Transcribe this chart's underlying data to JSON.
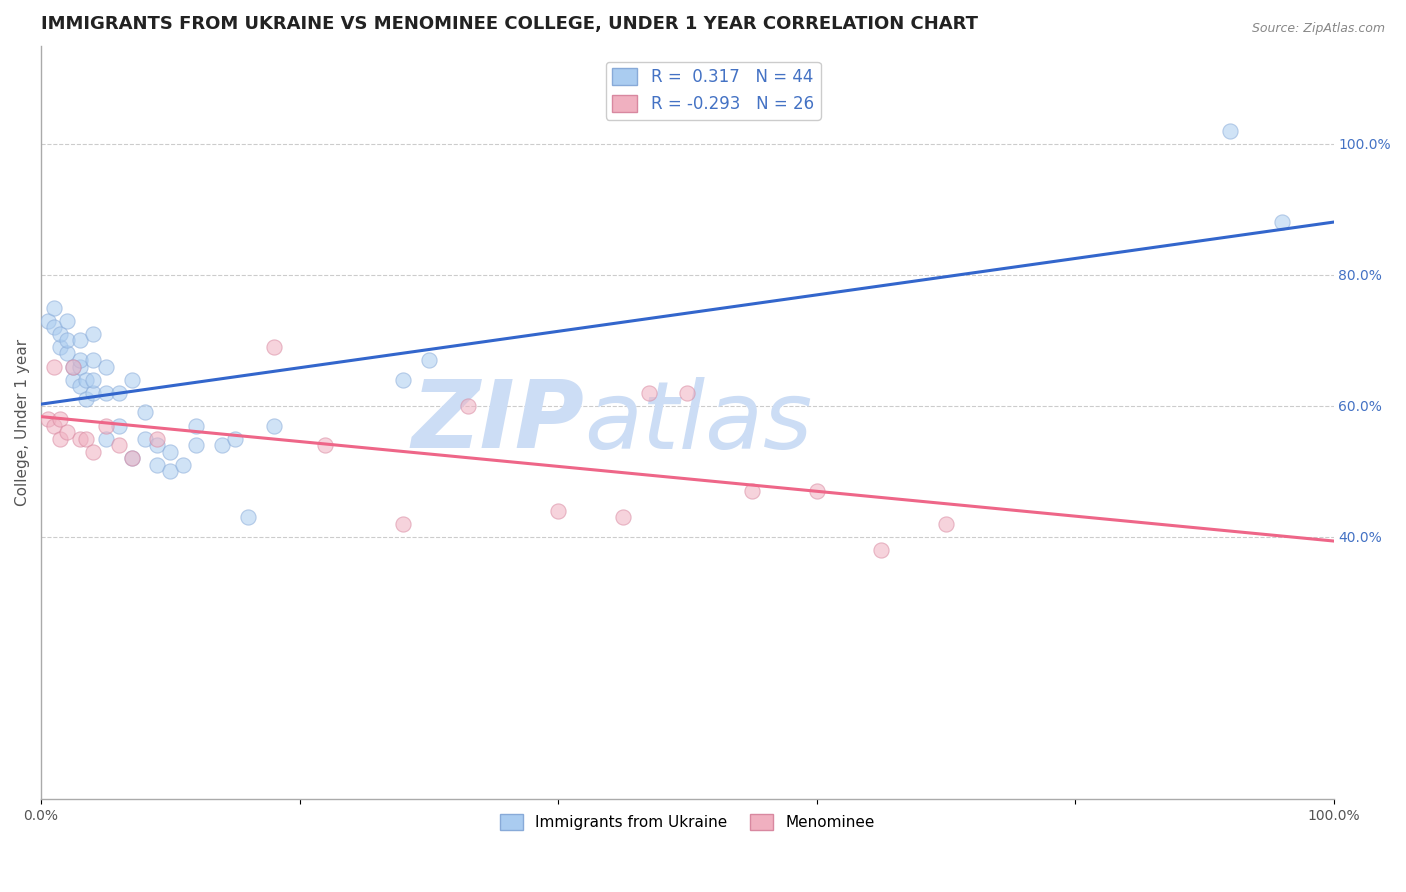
{
  "title": "IMMIGRANTS FROM UKRAINE VS MENOMINEE COLLEGE, UNDER 1 YEAR CORRELATION CHART",
  "source_text": "Source: ZipAtlas.com",
  "ylabel": "College, Under 1 year",
  "xlim": [
    0.0,
    1.0
  ],
  "ylim": [
    0.0,
    1.15
  ],
  "xtick_positions": [
    0.0,
    0.2,
    0.4,
    0.6,
    0.8,
    1.0
  ],
  "xtick_labels": [
    "0.0%",
    "",
    "",
    "",
    "",
    "100.0%"
  ],
  "right_ytick_positions": [
    0.4,
    0.6,
    0.8,
    1.0
  ],
  "right_ytick_labels": [
    "40.0%",
    "60.0%",
    "80.0%",
    "100.0%"
  ],
  "background_color": "#ffffff",
  "grid_color": "#cccccc",
  "watermark_zip": "ZIP",
  "watermark_atlas": "atlas",
  "watermark_color": "#ccddf5",
  "ukraine_x": [
    0.005,
    0.01,
    0.01,
    0.015,
    0.015,
    0.02,
    0.02,
    0.02,
    0.025,
    0.025,
    0.03,
    0.03,
    0.03,
    0.03,
    0.035,
    0.035,
    0.04,
    0.04,
    0.04,
    0.04,
    0.05,
    0.05,
    0.05,
    0.06,
    0.06,
    0.07,
    0.07,
    0.08,
    0.08,
    0.09,
    0.09,
    0.1,
    0.1,
    0.11,
    0.12,
    0.12,
    0.14,
    0.15,
    0.16,
    0.18,
    0.28,
    0.3,
    0.92,
    0.96
  ],
  "ukraine_y": [
    0.73,
    0.72,
    0.75,
    0.69,
    0.71,
    0.68,
    0.7,
    0.73,
    0.64,
    0.66,
    0.63,
    0.66,
    0.67,
    0.7,
    0.61,
    0.64,
    0.62,
    0.64,
    0.67,
    0.71,
    0.55,
    0.62,
    0.66,
    0.57,
    0.62,
    0.52,
    0.64,
    0.55,
    0.59,
    0.51,
    0.54,
    0.5,
    0.53,
    0.51,
    0.54,
    0.57,
    0.54,
    0.55,
    0.43,
    0.57,
    0.64,
    0.67,
    1.02,
    0.88
  ],
  "menominee_x": [
    0.005,
    0.01,
    0.01,
    0.015,
    0.015,
    0.02,
    0.025,
    0.03,
    0.035,
    0.04,
    0.05,
    0.06,
    0.07,
    0.09,
    0.18,
    0.22,
    0.28,
    0.33,
    0.4,
    0.45,
    0.47,
    0.5,
    0.55,
    0.6,
    0.65,
    0.7
  ],
  "menominee_y": [
    0.58,
    0.57,
    0.66,
    0.55,
    0.58,
    0.56,
    0.66,
    0.55,
    0.55,
    0.53,
    0.57,
    0.54,
    0.52,
    0.55,
    0.69,
    0.54,
    0.42,
    0.6,
    0.44,
    0.43,
    0.62,
    0.62,
    0.47,
    0.47,
    0.38,
    0.42
  ],
  "ukraine_color": "#aaccf0",
  "ukraine_edge_color": "#88aad8",
  "menominee_color": "#f0b0c0",
  "menominee_edge_color": "#d888a0",
  "trendline_ukraine_color": "#3366cc",
  "trendline_menominee_color": "#ee6688",
  "legend_R_ukraine": "0.317",
  "legend_N_ukraine": "44",
  "legend_R_menominee": "-0.293",
  "legend_N_menominee": "26",
  "marker_size": 120,
  "marker_alpha": 0.55,
  "title_fontsize": 13,
  "axis_label_fontsize": 11,
  "tick_fontsize": 10,
  "legend_fontsize": 12
}
